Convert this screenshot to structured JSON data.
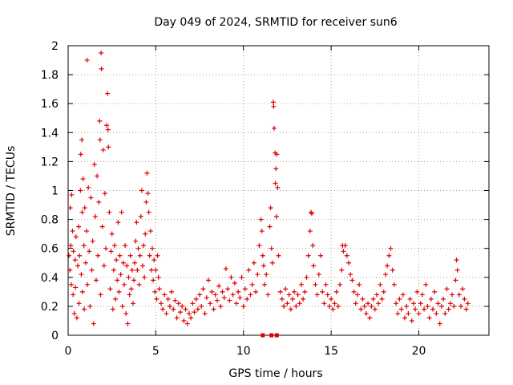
{
  "chart_data": {
    "type": "scatter",
    "title": "Day 049 of 2024, SRMTID for receiver sun6",
    "xlabel": "GPS time / hours",
    "ylabel": "SRMTID / TECUs",
    "xlim": [
      0,
      24
    ],
    "ylim": [
      0,
      2
    ],
    "xticks": [
      0,
      5,
      10,
      15,
      20
    ],
    "yticks": [
      0,
      0.2,
      0.4,
      0.6,
      0.8,
      1,
      1.2,
      1.4,
      1.6,
      1.8,
      2
    ],
    "xtick_labels": [
      "0",
      "5",
      "10",
      "15",
      "20"
    ],
    "ytick_labels": [
      "0",
      "0.2",
      "0.4",
      "0.6",
      "0.8",
      "1",
      "1.2",
      "1.4",
      "1.6",
      "1.8",
      "2"
    ],
    "grid": true,
    "marker": "+",
    "color": "#e00000",
    "series": [
      {
        "name": "SRMTID",
        "points": [
          [
            0.05,
            0.55
          ],
          [
            0.1,
            0.45
          ],
          [
            0.12,
            0.88
          ],
          [
            0.15,
            0.62
          ],
          [
            0.18,
            0.35
          ],
          [
            0.2,
            0.97
          ],
          [
            0.25,
            0.72
          ],
          [
            0.28,
            0.28
          ],
          [
            0.3,
            0.58
          ],
          [
            0.35,
            0.15
          ],
          [
            0.4,
            0.52
          ],
          [
            0.42,
            0.33
          ],
          [
            0.45,
            0.68
          ],
          [
            0.5,
            0.12
          ],
          [
            0.55,
            0.48
          ],
          [
            0.6,
            0.75
          ],
          [
            0.62,
            0.22
          ],
          [
            0.65,
            0.55
          ],
          [
            0.7,
            1.0
          ],
          [
            0.72,
            1.25
          ],
          [
            0.75,
            0.42
          ],
          [
            0.78,
            1.35
          ],
          [
            0.8,
            0.85
          ],
          [
            0.82,
            0.3
          ],
          [
            0.85,
            1.08
          ],
          [
            0.9,
            0.62
          ],
          [
            0.92,
            0.18
          ],
          [
            0.95,
            0.88
          ],
          [
            1.0,
            0.5
          ],
          [
            1.05,
            0.72
          ],
          [
            1.08,
            1.9
          ],
          [
            1.1,
            0.35
          ],
          [
            1.15,
            1.02
          ],
          [
            1.2,
            0.58
          ],
          [
            1.25,
            0.2
          ],
          [
            1.3,
            0.95
          ],
          [
            1.35,
            0.45
          ],
          [
            1.4,
            0.65
          ],
          [
            1.45,
            0.08
          ],
          [
            1.5,
            1.18
          ],
          [
            1.55,
            0.82
          ],
          [
            1.6,
            0.38
          ],
          [
            1.65,
            1.1
          ],
          [
            1.7,
            0.55
          ],
          [
            1.75,
            0.92
          ],
          [
            1.8,
            1.48
          ],
          [
            1.82,
            1.35
          ],
          [
            1.85,
            0.28
          ],
          [
            1.88,
            1.95
          ],
          [
            1.9,
            1.84
          ],
          [
            1.95,
            0.75
          ],
          [
            2.0,
            1.28
          ],
          [
            2.05,
            0.48
          ],
          [
            2.1,
            0.98
          ],
          [
            2.15,
            0.6
          ],
          [
            2.2,
            1.45
          ],
          [
            2.25,
            1.67
          ],
          [
            2.28,
            1.42
          ],
          [
            2.3,
            1.3
          ],
          [
            2.35,
            0.85
          ],
          [
            2.4,
            0.32
          ],
          [
            2.45,
            0.58
          ],
          [
            2.5,
            0.7
          ],
          [
            2.55,
            0.18
          ],
          [
            2.6,
            0.45
          ],
          [
            2.65,
            0.62
          ],
          [
            2.7,
            0.25
          ],
          [
            2.75,
            0.52
          ],
          [
            2.8,
            0.38
          ],
          [
            2.85,
            0.78
          ],
          [
            2.9,
            0.3
          ],
          [
            2.95,
            0.55
          ],
          [
            3.0,
            0.42
          ],
          [
            3.05,
            0.85
          ],
          [
            3.1,
            0.2
          ],
          [
            3.15,
            0.5
          ],
          [
            3.2,
            0.35
          ],
          [
            3.25,
            0.62
          ],
          [
            3.3,
            0.15
          ],
          [
            3.35,
            0.48
          ],
          [
            3.4,
            0.08
          ],
          [
            3.45,
            0.4
          ],
          [
            3.5,
            0.28
          ],
          [
            3.55,
            0.55
          ],
          [
            3.6,
            0.32
          ],
          [
            3.65,
            0.45
          ],
          [
            3.7,
            0.22
          ],
          [
            3.75,
            0.38
          ],
          [
            3.8,
            0.5
          ],
          [
            3.85,
            0.65
          ],
          [
            3.9,
            0.78
          ],
          [
            3.95,
            0.45
          ],
          [
            4.0,
            0.6
          ],
          [
            4.05,
            0.35
          ],
          [
            4.1,
            0.55
          ],
          [
            4.15,
            0.82
          ],
          [
            4.2,
            1.0
          ],
          [
            4.25,
            0.48
          ],
          [
            4.3,
            0.62
          ],
          [
            4.35,
            0.4
          ],
          [
            4.4,
            0.7
          ],
          [
            4.45,
            0.92
          ],
          [
            4.5,
            1.12
          ],
          [
            4.55,
            0.98
          ],
          [
            4.6,
            0.85
          ],
          [
            4.65,
            0.55
          ],
          [
            4.7,
            0.72
          ],
          [
            4.75,
            0.45
          ],
          [
            4.8,
            0.6
          ],
          [
            4.85,
            0.38
          ],
          [
            4.9,
            0.52
          ],
          [
            4.95,
            0.3
          ],
          [
            5.0,
            0.45
          ],
          [
            5.05,
            0.25
          ],
          [
            5.1,
            0.55
          ],
          [
            5.15,
            0.4
          ],
          [
            5.2,
            0.32
          ],
          [
            5.3,
            0.22
          ],
          [
            5.4,
            0.18
          ],
          [
            5.5,
            0.28
          ],
          [
            5.6,
            0.15
          ],
          [
            5.7,
            0.25
          ],
          [
            5.8,
            0.2
          ],
          [
            5.9,
            0.3
          ],
          [
            6.0,
            0.18
          ],
          [
            6.1,
            0.24
          ],
          [
            6.2,
            0.12
          ],
          [
            6.3,
            0.22
          ],
          [
            6.4,
            0.16
          ],
          [
            6.5,
            0.2
          ],
          [
            6.6,
            0.1
          ],
          [
            6.7,
            0.18
          ],
          [
            6.8,
            0.08
          ],
          [
            6.9,
            0.15
          ],
          [
            7.0,
            0.12
          ],
          [
            7.1,
            0.22
          ],
          [
            7.2,
            0.16
          ],
          [
            7.3,
            0.25
          ],
          [
            7.4,
            0.18
          ],
          [
            7.5,
            0.28
          ],
          [
            7.6,
            0.2
          ],
          [
            7.7,
            0.32
          ],
          [
            7.8,
            0.15
          ],
          [
            7.9,
            0.26
          ],
          [
            8.0,
            0.38
          ],
          [
            8.1,
            0.22
          ],
          [
            8.2,
            0.3
          ],
          [
            8.3,
            0.18
          ],
          [
            8.4,
            0.28
          ],
          [
            8.5,
            0.24
          ],
          [
            8.6,
            0.34
          ],
          [
            8.7,
            0.2
          ],
          [
            8.8,
            0.3
          ],
          [
            8.9,
            0.26
          ],
          [
            9.0,
            0.46
          ],
          [
            9.1,
            0.32
          ],
          [
            9.2,
            0.24
          ],
          [
            9.3,
            0.4
          ],
          [
            9.4,
            0.28
          ],
          [
            9.5,
            0.36
          ],
          [
            9.6,
            0.22
          ],
          [
            9.7,
            0.3
          ],
          [
            9.8,
            0.26
          ],
          [
            9.9,
            0.4
          ],
          [
            10.0,
            0.2
          ],
          [
            10.1,
            0.32
          ],
          [
            10.2,
            0.25
          ],
          [
            10.3,
            0.45
          ],
          [
            10.4,
            0.28
          ],
          [
            10.5,
            0.35
          ],
          [
            10.6,
            0.5
          ],
          [
            10.7,
            0.3
          ],
          [
            10.8,
            0.42
          ],
          [
            10.9,
            0.62
          ],
          [
            11.0,
            0.8
          ],
          [
            11.05,
            0.72
          ],
          [
            11.1,
            0.55
          ],
          [
            11.15,
            0.48
          ],
          [
            11.2,
            0.35
          ],
          [
            11.3,
            0.42
          ],
          [
            11.4,
            0.28
          ],
          [
            11.5,
            0.75
          ],
          [
            11.55,
            0.88
          ],
          [
            11.6,
            0.6
          ],
          [
            11.65,
            0.5
          ],
          [
            11.7,
            1.61
          ],
          [
            11.72,
            1.58
          ],
          [
            11.75,
            1.43
          ],
          [
            11.8,
            1.26
          ],
          [
            11.82,
            1.05
          ],
          [
            11.85,
            1.15
          ],
          [
            11.88,
            0.82
          ],
          [
            11.9,
            1.25
          ],
          [
            11.95,
            1.02
          ],
          [
            12.0,
            0.55
          ],
          [
            12.1,
            0.3
          ],
          [
            12.2,
            0.25
          ],
          [
            12.3,
            0.2
          ],
          [
            12.4,
            0.32
          ],
          [
            12.5,
            0.22
          ],
          [
            12.6,
            0.28
          ],
          [
            12.7,
            0.18
          ],
          [
            12.8,
            0.25
          ],
          [
            12.9,
            0.3
          ],
          [
            13.0,
            0.2
          ],
          [
            13.1,
            0.28
          ],
          [
            13.2,
            0.22
          ],
          [
            13.3,
            0.35
          ],
          [
            13.4,
            0.25
          ],
          [
            13.5,
            0.3
          ],
          [
            13.6,
            0.4
          ],
          [
            13.7,
            0.55
          ],
          [
            13.8,
            0.72
          ],
          [
            13.85,
            0.85
          ],
          [
            13.9,
            0.84
          ],
          [
            13.95,
            0.62
          ],
          [
            14.0,
            0.48
          ],
          [
            14.1,
            0.35
          ],
          [
            14.2,
            0.28
          ],
          [
            14.3,
            0.42
          ],
          [
            14.4,
            0.55
          ],
          [
            14.5,
            0.3
          ],
          [
            14.6,
            0.22
          ],
          [
            14.7,
            0.35
          ],
          [
            14.8,
            0.28
          ],
          [
            14.9,
            0.2
          ],
          [
            15.0,
            0.25
          ],
          [
            15.1,
            0.18
          ],
          [
            15.2,
            0.22
          ],
          [
            15.3,
            0.3
          ],
          [
            15.4,
            0.2
          ],
          [
            15.5,
            0.35
          ],
          [
            15.6,
            0.45
          ],
          [
            15.65,
            0.62
          ],
          [
            15.7,
            0.58
          ],
          [
            15.8,
            0.62
          ],
          [
            15.9,
            0.55
          ],
          [
            16.0,
            0.5
          ],
          [
            16.1,
            0.42
          ],
          [
            16.2,
            0.38
          ],
          [
            16.3,
            0.3
          ],
          [
            16.4,
            0.22
          ],
          [
            16.5,
            0.28
          ],
          [
            16.6,
            0.35
          ],
          [
            16.7,
            0.18
          ],
          [
            16.8,
            0.25
          ],
          [
            16.9,
            0.2
          ],
          [
            17.0,
            0.15
          ],
          [
            17.1,
            0.22
          ],
          [
            17.2,
            0.12
          ],
          [
            17.3,
            0.2
          ],
          [
            17.4,
            0.25
          ],
          [
            17.5,
            0.18
          ],
          [
            17.6,
            0.28
          ],
          [
            17.7,
            0.22
          ],
          [
            17.8,
            0.35
          ],
          [
            17.9,
            0.25
          ],
          [
            18.0,
            0.3
          ],
          [
            18.1,
            0.42
          ],
          [
            18.2,
            0.48
          ],
          [
            18.3,
            0.55
          ],
          [
            18.4,
            0.6
          ],
          [
            18.5,
            0.45
          ],
          [
            18.6,
            0.35
          ],
          [
            18.7,
            0.22
          ],
          [
            18.8,
            0.15
          ],
          [
            18.9,
            0.25
          ],
          [
            19.0,
            0.18
          ],
          [
            19.1,
            0.28
          ],
          [
            19.2,
            0.12
          ],
          [
            19.3,
            0.2
          ],
          [
            19.4,
            0.15
          ],
          [
            19.5,
            0.25
          ],
          [
            19.6,
            0.1
          ],
          [
            19.7,
            0.22
          ],
          [
            19.8,
            0.18
          ],
          [
            19.9,
            0.3
          ],
          [
            20.0,
            0.15
          ],
          [
            20.1,
            0.22
          ],
          [
            20.2,
            0.28
          ],
          [
            20.3,
            0.18
          ],
          [
            20.4,
            0.35
          ],
          [
            20.5,
            0.2
          ],
          [
            20.6,
            0.12
          ],
          [
            20.7,
            0.25
          ],
          [
            20.8,
            0.18
          ],
          [
            20.9,
            0.3
          ],
          [
            21.0,
            0.15
          ],
          [
            21.1,
            0.22
          ],
          [
            21.2,
            0.08
          ],
          [
            21.3,
            0.2
          ],
          [
            21.4,
            0.25
          ],
          [
            21.5,
            0.15
          ],
          [
            21.6,
            0.32
          ],
          [
            21.7,
            0.18
          ],
          [
            21.8,
            0.22
          ],
          [
            21.9,
            0.28
          ],
          [
            22.0,
            0.2
          ],
          [
            22.1,
            0.38
          ],
          [
            22.15,
            0.52
          ],
          [
            22.2,
            0.45
          ],
          [
            22.3,
            0.28
          ],
          [
            22.4,
            0.2
          ],
          [
            22.5,
            0.32
          ],
          [
            22.6,
            0.25
          ],
          [
            22.7,
            0.18
          ],
          [
            22.8,
            0.22
          ]
        ]
      }
    ],
    "zero_markers": [
      11.1,
      11.6,
      11.9
    ]
  }
}
